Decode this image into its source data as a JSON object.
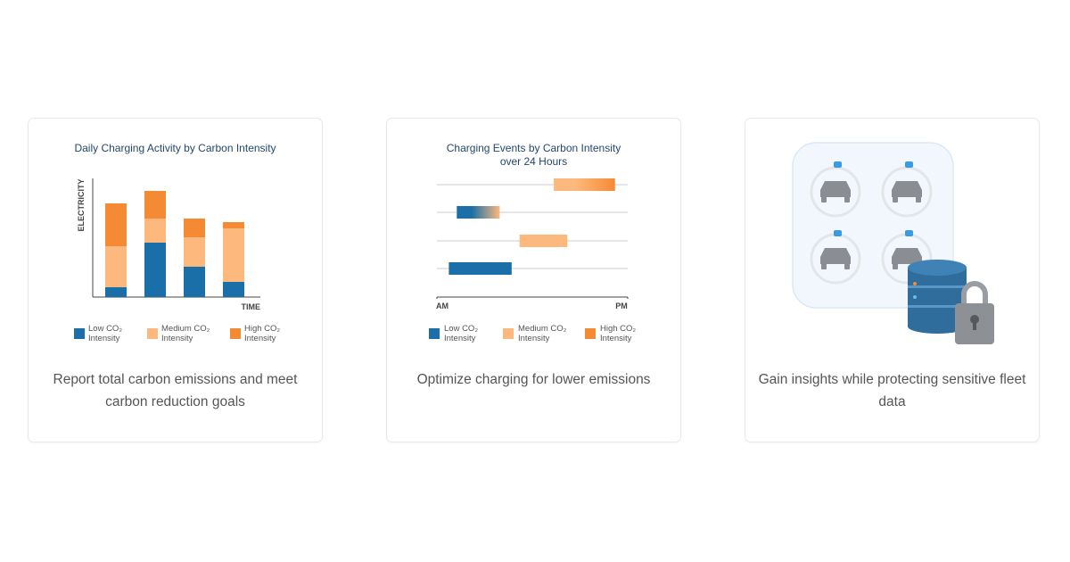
{
  "cards": [
    {
      "chart_data": {
        "type": "stacked_bar",
        "title": "Daily Charging Activity by Carbon Intensity",
        "y_label": "ELECTRICITY",
        "x_label": "TIME",
        "categories": [
          null,
          null,
          null,
          null
        ],
        "series": [
          {
            "name": "Low CO₂ Intensity",
            "color": "#1a6fa8",
            "values": [
              11,
              61,
              34,
              17
            ]
          },
          {
            "name": "Medium CO₂ Intensity",
            "color": "#fdb97d",
            "values": [
              46,
              27,
              33,
              60
            ]
          },
          {
            "name": "High CO₂ Intensity",
            "color": "#f58a34",
            "values": [
              48,
              31,
              21,
              7
            ]
          }
        ],
        "ylim": [
          0,
          130
        ]
      },
      "caption": "Report total carbon emissions and meet carbon reduction goals"
    },
    {
      "chart_data": {
        "type": "range_bar",
        "title": [
          "Charging Events by Carbon Intensity",
          "over 24 Hours"
        ],
        "legend": [
          {
            "name": "Low CO₂ Intensity",
            "color": "#1a6fa8"
          },
          {
            "name": "Medium CO₂ Intensity",
            "color": "#fdb97d"
          },
          {
            "name": "High CO₂ Intensity",
            "color": "#f58a34"
          }
        ],
        "rows": [
          {
            "start": 14.7,
            "end": 22.4,
            "colors": [
              "#fdb97d",
              "#f58a34"
            ]
          },
          {
            "start": 2.5,
            "end": 7.9,
            "colors": [
              "#1a6fa8",
              "#fdb97d"
            ]
          },
          {
            "start": 10.4,
            "end": 16.4,
            "colors": [
              "#fdb97d",
              "#fdb97d"
            ]
          },
          {
            "start": 1.5,
            "end": 9.4,
            "colors": [
              "#1a6fa8",
              "#1a6fa8"
            ]
          }
        ],
        "xlim": [
          0,
          24
        ],
        "xticks": [
          {
            "value": 0,
            "label": "AM"
          },
          {
            "value": 24,
            "label": "PM"
          }
        ]
      },
      "caption": "Optimize charging for lower emissions"
    },
    {
      "caption": "Gain insights while protecting sensitive fleet data"
    }
  ]
}
